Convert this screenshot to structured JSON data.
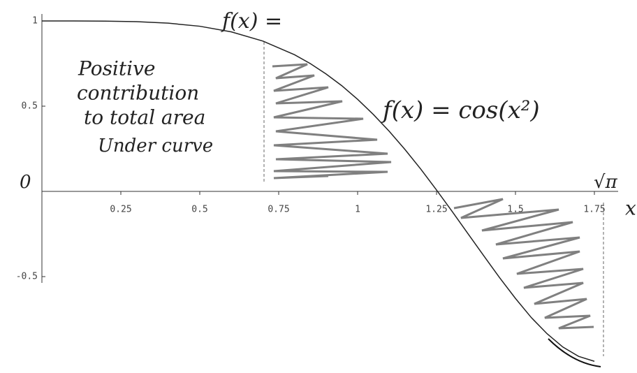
{
  "chart_data": {
    "type": "line",
    "x": [
      0,
      0.1,
      0.2,
      0.3,
      0.4,
      0.5,
      0.6,
      0.7,
      0.8,
      0.85,
      0.9,
      0.95,
      1.0,
      1.05,
      1.1,
      1.15,
      1.2,
      1.25,
      1.3,
      1.35,
      1.4,
      1.45,
      1.5,
      1.55,
      1.6,
      1.65,
      1.7,
      1.75
    ],
    "series": [
      {
        "color": "#222222",
        "values": [
          1,
          1.0,
          0.999,
          0.996,
          0.987,
          0.969,
          0.936,
          0.882,
          0.802,
          0.75,
          0.689,
          0.62,
          0.54,
          0.451,
          0.353,
          0.246,
          0.131,
          0.008,
          -0.119,
          -0.249,
          -0.379,
          -0.507,
          -0.628,
          -0.74,
          -0.835,
          -0.913,
          -0.968,
          -0.997
        ]
      }
    ],
    "xlim": [
      0,
      1.8
    ],
    "ylim": [
      -1,
      1
    ],
    "xticks": [
      0.25,
      0.5,
      0.75,
      1,
      1.25,
      1.5,
      1.75
    ],
    "yticks": [
      -0.5,
      0.5,
      1
    ],
    "annotations": [
      "f(x) =",
      "Positive",
      "contribution",
      "to total area",
      "Under curve",
      "f(x) = cos(x²)",
      "√π",
      "x",
      "0"
    ]
  }
}
